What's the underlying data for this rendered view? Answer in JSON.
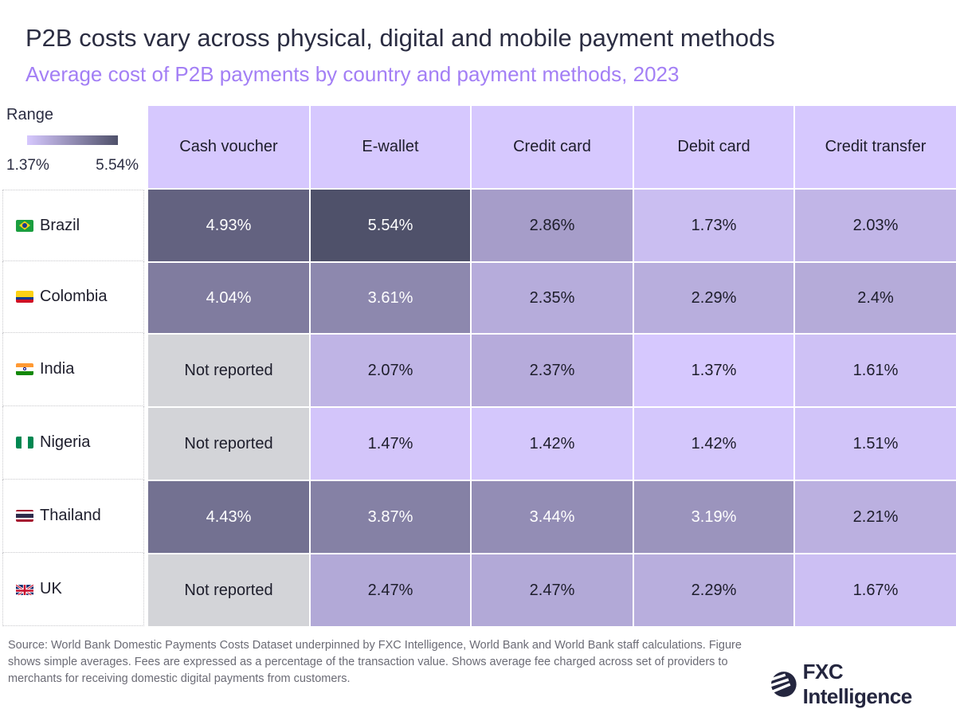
{
  "title": "P2B costs vary across physical, digital and mobile payment methods",
  "subtitle": "Average cost of P2B payments by country and payment methods, 2023",
  "legend": {
    "label": "Range",
    "min": "1.37%",
    "max": "5.54%",
    "min_value": 1.37,
    "max_value": 5.54,
    "low_color": "#d6c8fe",
    "high_color": "#4f516a"
  },
  "colors": {
    "not_reported": "#d3d4d8",
    "header": "#d6c8fe",
    "light_text": "#ffffff",
    "dark_text": "#1d1d2b"
  },
  "chart_data": {
    "type": "heatmap",
    "columns": [
      "Cash voucher",
      "E-wallet",
      "Credit card",
      "Debit card",
      "Credit transfer"
    ],
    "rows": [
      {
        "country": "Brazil",
        "flag": "brazil-flag",
        "values": [
          4.93,
          5.54,
          2.86,
          1.73,
          2.03
        ],
        "labels": [
          "4.93%",
          "5.54%",
          "2.86%",
          "1.73%",
          "2.03%"
        ]
      },
      {
        "country": "Colombia",
        "flag": "colombia-flag",
        "values": [
          4.04,
          3.61,
          2.35,
          2.29,
          2.4
        ],
        "labels": [
          "4.04%",
          "3.61%",
          "2.35%",
          "2.29%",
          "2.4%"
        ]
      },
      {
        "country": "India",
        "flag": "india-flag",
        "values": [
          null,
          2.07,
          2.37,
          1.37,
          1.61
        ],
        "labels": [
          "Not reported",
          "2.07%",
          "2.37%",
          "1.37%",
          "1.61%"
        ]
      },
      {
        "country": "Nigeria",
        "flag": "nigeria-flag",
        "values": [
          null,
          1.47,
          1.42,
          1.42,
          1.51
        ],
        "labels": [
          "Not reported",
          "1.47%",
          "1.42%",
          "1.42%",
          "1.51%"
        ]
      },
      {
        "country": "Thailand",
        "flag": "thailand-flag",
        "values": [
          4.43,
          3.87,
          3.44,
          3.19,
          2.21
        ],
        "labels": [
          "4.43%",
          "3.87%",
          "3.44%",
          "3.19%",
          "2.21%"
        ]
      },
      {
        "country": "UK",
        "flag": "uk-flag",
        "values": [
          null,
          2.47,
          2.47,
          2.29,
          1.67
        ],
        "labels": [
          "Not reported",
          "2.47%",
          "2.47%",
          "2.29%",
          "1.67%"
        ]
      }
    ]
  },
  "source": "Source: World Bank Domestic Payments Costs Dataset underpinned by FXC Intelligence, World Bank and World Bank staff calculations. Figure shows simple averages. Fees are expressed as a percentage of the transaction value. Shows average fee charged across set of providers to merchants for receiving domestic digital payments from customers.",
  "logo": "FXC Intelligence"
}
